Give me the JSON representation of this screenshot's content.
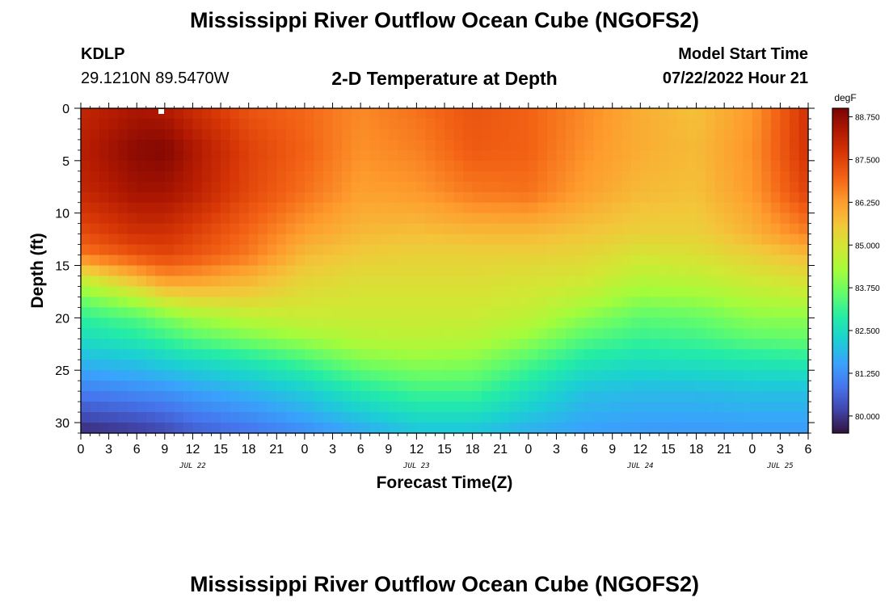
{
  "header": {
    "title": "Mississippi River Outflow Ocean Cube (NGOFS2)",
    "station": "KDLP",
    "coordinates": "29.1210N  89.5470W",
    "subtitle": "2-D Temperature at Depth",
    "model_start_label": "Model Start Time",
    "model_start_value": "07/22/2022 Hour 21"
  },
  "footer": {
    "title": "Mississippi River Outflow Ocean Cube (NGOFS2)"
  },
  "chart_data": {
    "type": "heatmap",
    "xlabel": "Forecast Time(Z)",
    "ylabel": "Depth (ft)",
    "x_range_hours": [
      0,
      78
    ],
    "y_range": [
      0,
      31
    ],
    "y_inverted": true,
    "x_ticks": [
      "0",
      "3",
      "6",
      "9",
      "12",
      "15",
      "18",
      "21",
      "0",
      "3",
      "6",
      "9",
      "12",
      "15",
      "18",
      "21",
      "0",
      "3",
      "6",
      "9",
      "12",
      "15",
      "18",
      "21",
      "0",
      "3",
      "6"
    ],
    "y_ticks": [
      0,
      5,
      10,
      15,
      20,
      25,
      30
    ],
    "date_labels": [
      {
        "hour": 12,
        "label": "JUL 22"
      },
      {
        "hour": 36,
        "label": "JUL 23"
      },
      {
        "hour": 60,
        "label": "JUL 24"
      },
      {
        "hour": 75,
        "label": "JUL 25"
      }
    ],
    "colorbar": {
      "unit": "degF",
      "min": 79.5,
      "max": 89.0,
      "ticks": [
        "88.750",
        "87.500",
        "86.250",
        "85.000",
        "83.750",
        "82.500",
        "81.250",
        "80.000"
      ],
      "tick_values": [
        88.75,
        87.5,
        86.25,
        85.0,
        83.75,
        82.5,
        81.25,
        80.0
      ],
      "colormap": [
        "#30123b",
        "#4145ab",
        "#4675ed",
        "#39a2fc",
        "#1bcfd4",
        "#24eca6",
        "#61fc6c",
        "#a4fc3b",
        "#d1e834",
        "#f3c63a",
        "#fe9b2d",
        "#f36315",
        "#d93806",
        "#b11901",
        "#7a0403"
      ]
    },
    "grid": {
      "time_hours": [
        0,
        6,
        9,
        12,
        18,
        24,
        30,
        36,
        42,
        48,
        54,
        60,
        66,
        72,
        78
      ],
      "depth_ft": [
        0,
        4,
        8,
        12,
        14,
        16,
        18,
        20,
        22,
        24,
        27,
        31
      ],
      "temperature_degF": [
        [
          88.0,
          88.4,
          88.3,
          87.9,
          87.2,
          86.9,
          86.5,
          86.8,
          87.2,
          87.0,
          86.5,
          86.0,
          85.7,
          86.3,
          87.8
        ],
        [
          88.2,
          88.8,
          88.9,
          88.4,
          87.5,
          87.0,
          86.4,
          86.6,
          87.1,
          87.0,
          86.4,
          86.0,
          85.8,
          86.4,
          87.8
        ],
        [
          88.0,
          88.5,
          88.5,
          88.2,
          87.4,
          86.8,
          86.2,
          86.3,
          86.7,
          86.8,
          86.2,
          85.8,
          85.7,
          86.3,
          87.5
        ],
        [
          87.3,
          87.8,
          87.8,
          87.5,
          86.9,
          86.2,
          85.8,
          85.7,
          85.8,
          85.8,
          85.6,
          85.4,
          85.4,
          85.9,
          86.6
        ],
        [
          86.7,
          87.2,
          87.4,
          87.2,
          86.7,
          85.8,
          85.5,
          85.4,
          85.4,
          85.4,
          85.3,
          85.0,
          85.1,
          85.4,
          85.8
        ],
        [
          85.0,
          86.0,
          86.5,
          86.4,
          86.0,
          85.4,
          85.2,
          85.2,
          85.2,
          85.1,
          85.0,
          84.6,
          84.7,
          85.0,
          85.2
        ],
        [
          83.8,
          84.6,
          85.2,
          85.4,
          85.4,
          85.1,
          85.0,
          85.0,
          85.0,
          84.9,
          84.6,
          84.1,
          84.2,
          84.5,
          84.7
        ],
        [
          83.0,
          83.4,
          83.8,
          84.2,
          84.6,
          84.8,
          84.8,
          84.8,
          84.8,
          84.6,
          84.0,
          83.5,
          83.6,
          84.0,
          84.0
        ],
        [
          82.5,
          82.8,
          83.1,
          83.4,
          83.8,
          84.2,
          84.5,
          84.6,
          84.5,
          84.1,
          83.4,
          83.1,
          83.2,
          83.5,
          83.6
        ],
        [
          81.9,
          82.1,
          82.3,
          82.5,
          82.8,
          83.3,
          83.9,
          84.1,
          84.0,
          83.4,
          82.8,
          82.6,
          82.7,
          82.8,
          82.9
        ],
        [
          81.0,
          81.2,
          81.3,
          81.5,
          81.8,
          82.2,
          82.8,
          83.2,
          83.2,
          82.6,
          82.0,
          81.9,
          81.9,
          82.0,
          82.0
        ],
        [
          79.8,
          80.0,
          80.2,
          80.5,
          80.8,
          81.2,
          81.6,
          82.0,
          82.0,
          81.7,
          81.5,
          81.4,
          81.4,
          81.4,
          81.4
        ]
      ]
    }
  }
}
